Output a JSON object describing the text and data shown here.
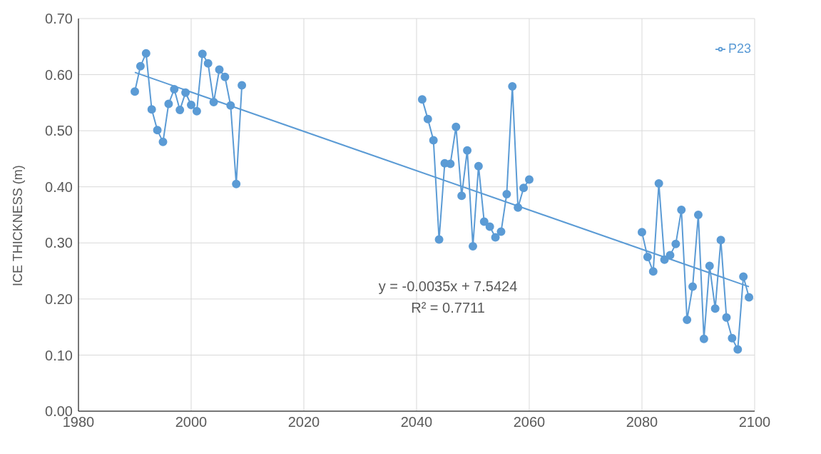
{
  "chart_data": {
    "type": "line",
    "ylabel": "ICE THICKNESS (m)",
    "xlim": [
      1980,
      2100
    ],
    "xticks": [
      1980,
      2000,
      2020,
      2040,
      2060,
      2080,
      2100
    ],
    "ylim": [
      0,
      0.7
    ],
    "yticks": [
      {
        "value": 0,
        "label": "0.00"
      },
      {
        "value": 0.1,
        "label": "0.10"
      },
      {
        "value": 0.2,
        "label": "0.20"
      },
      {
        "value": 0.3,
        "label": "0.30"
      },
      {
        "value": 0.4,
        "label": "0.40"
      },
      {
        "value": 0.5,
        "label": "0.50"
      },
      {
        "value": 0.6,
        "label": "0.60"
      },
      {
        "value": 0.7,
        "label": "0.70"
      }
    ],
    "grid": true,
    "legend": "top right",
    "marker": "circle",
    "line_style": "solid",
    "annotations": [
      "y = -0.0035x + 7.5424",
      "R² = 0.7711"
    ],
    "series": [
      {
        "name": "P23",
        "color": "#5b9bd5",
        "x": [
          1990,
          1991,
          1992,
          1993,
          1994,
          1995,
          1996,
          1997,
          1998,
          1999,
          2000,
          2001,
          2002,
          2003,
          2004,
          2005,
          2006,
          2007,
          2008,
          2009,
          2010,
          2041,
          2042,
          2043,
          2044,
          2045,
          2046,
          2047,
          2048,
          2049,
          2050,
          2051,
          2052,
          2053,
          2054,
          2055,
          2056,
          2057,
          2058,
          2059,
          2060,
          2061,
          2080,
          2081,
          2082,
          2083,
          2084,
          2085,
          2086,
          2087,
          2088,
          2089,
          2090,
          2091,
          2092,
          2093,
          2094,
          2095,
          2096,
          2097,
          2098,
          2099
        ],
        "values": [
          0.57,
          0.615,
          0.638,
          0.538,
          0.501,
          0.48,
          0.548,
          0.574,
          0.537,
          0.568,
          0.546,
          0.535,
          0.637,
          0.62,
          0.551,
          0.609,
          0.596,
          0.545,
          0.405,
          0.581,
          null,
          0.556,
          0.521,
          0.483,
          0.306,
          0.442,
          0.441,
          0.507,
          0.384,
          0.465,
          0.294,
          0.437,
          0.338,
          0.329,
          0.31,
          0.32,
          0.387,
          0.579,
          0.363,
          0.398,
          0.413,
          null,
          0.319,
          0.275,
          0.249,
          0.406,
          0.27,
          0.278,
          0.298,
          0.359,
          0.163,
          0.222,
          0.35,
          0.129,
          0.259,
          0.183,
          0.305,
          0.167,
          0.13,
          0.11,
          0.24,
          0.203
        ]
      },
      {
        "type": "line",
        "color": "#5b9bd5",
        "marker": "none",
        "x": [
          1990,
          2099
        ],
        "values": [
          0.604,
          0.222
        ]
      }
    ]
  }
}
